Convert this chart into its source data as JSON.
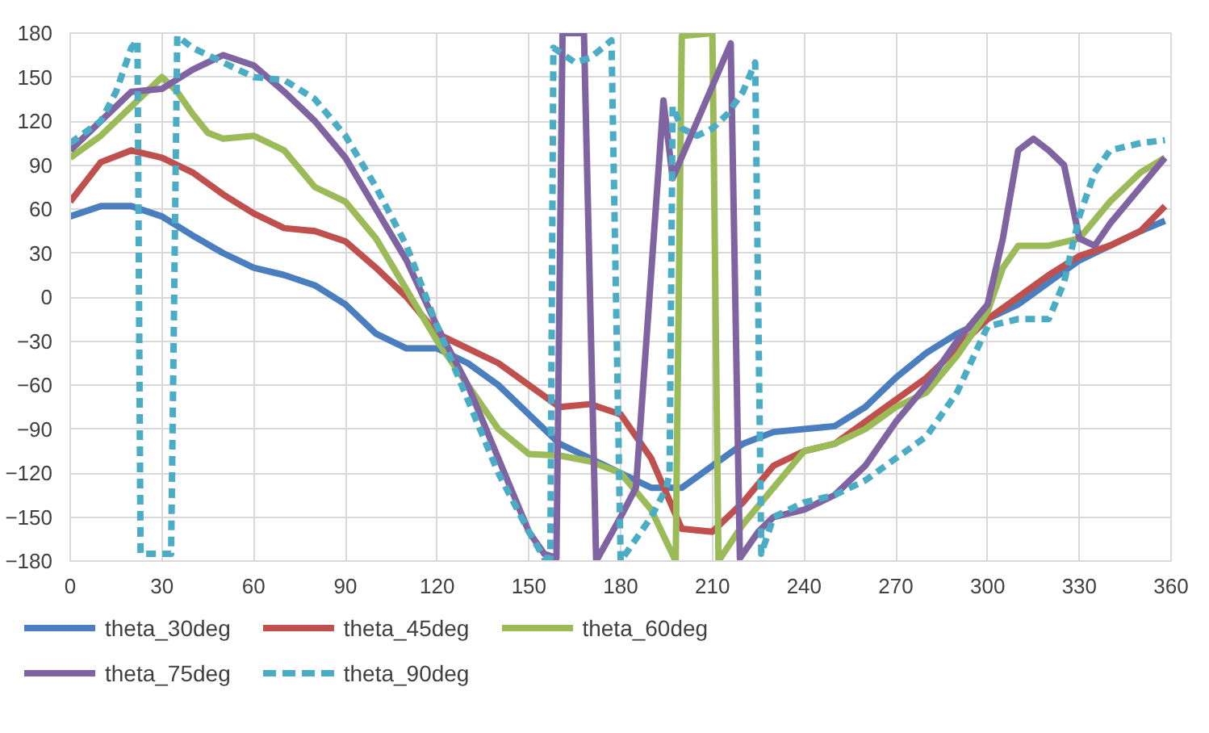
{
  "chart_data": {
    "type": "line",
    "xlim": [
      0,
      360
    ],
    "ylim": [
      -180,
      180
    ],
    "xticks": [
      0,
      30,
      60,
      90,
      120,
      150,
      180,
      210,
      240,
      270,
      300,
      330,
      360
    ],
    "yticks": [
      -180,
      -150,
      -120,
      -90,
      -60,
      -30,
      0,
      30,
      60,
      90,
      120,
      150,
      180
    ],
    "grid": true,
    "legend": "bottom",
    "line_style": "solid",
    "series": [
      {
        "name": "theta_30deg",
        "color": "#4a7ebf",
        "x": [
          0,
          10,
          20,
          30,
          40,
          50,
          60,
          70,
          80,
          90,
          100,
          110,
          120,
          130,
          140,
          150,
          160,
          170,
          180,
          190,
          200,
          210,
          220,
          230,
          240,
          250,
          260,
          270,
          280,
          290,
          300,
          310,
          320,
          330,
          340,
          350,
          358
        ],
        "values": [
          55,
          62,
          62,
          55,
          42,
          30,
          20,
          15,
          8,
          -5,
          -25,
          -35,
          -35,
          -45,
          -60,
          -80,
          -100,
          -110,
          -120,
          -130,
          -130,
          -115,
          -100,
          -92,
          -90,
          -88,
          -75,
          -55,
          -38,
          -25,
          -15,
          -5,
          10,
          25,
          35,
          45,
          52
        ]
      },
      {
        "name": "theta_45deg",
        "color": "#c0504d",
        "x": [
          0,
          10,
          20,
          30,
          40,
          50,
          60,
          70,
          80,
          90,
          100,
          110,
          120,
          130,
          140,
          150,
          160,
          170,
          180,
          190,
          200,
          210,
          220,
          230,
          240,
          250,
          260,
          270,
          280,
          290,
          300,
          310,
          320,
          330,
          340,
          350,
          358
        ],
        "values": [
          65,
          92,
          100,
          95,
          85,
          70,
          57,
          47,
          45,
          38,
          20,
          0,
          -25,
          -35,
          -45,
          -60,
          -75,
          -73,
          -80,
          -110,
          -158,
          -160,
          -140,
          -115,
          -105,
          -100,
          -85,
          -70,
          -55,
          -35,
          -15,
          0,
          15,
          28,
          35,
          45,
          62
        ]
      },
      {
        "name": "theta_60deg",
        "color": "#9bbb59",
        "x": [
          0,
          10,
          20,
          30,
          35,
          40,
          45,
          50,
          60,
          70,
          80,
          90,
          100,
          110,
          120,
          130,
          140,
          150,
          160,
          170,
          180,
          190,
          198,
          200,
          210,
          212,
          220,
          230,
          240,
          250,
          260,
          270,
          280,
          290,
          300,
          305,
          310,
          320,
          330,
          340,
          350,
          358
        ],
        "values": [
          95,
          110,
          130,
          150,
          140,
          125,
          112,
          108,
          110,
          100,
          75,
          65,
          40,
          5,
          -30,
          -60,
          -90,
          -107,
          -108,
          -112,
          -120,
          -145,
          -180,
          178,
          180,
          -180,
          -155,
          -130,
          -105,
          -100,
          -90,
          -75,
          -65,
          -40,
          -10,
          20,
          35,
          35,
          40,
          65,
          85,
          95
        ]
      },
      {
        "name": "theta_75deg",
        "color": "#8064a2",
        "x": [
          0,
          10,
          20,
          30,
          40,
          50,
          60,
          70,
          80,
          90,
          100,
          110,
          120,
          130,
          140,
          150,
          155,
          159,
          161,
          168,
          172,
          180,
          185,
          194,
          197,
          216,
          219,
          225,
          230,
          240,
          250,
          260,
          270,
          280,
          290,
          300,
          305,
          310,
          315,
          320,
          325,
          330,
          335,
          340,
          350,
          358
        ],
        "values": [
          100,
          120,
          140,
          142,
          155,
          165,
          158,
          140,
          120,
          95,
          60,
          25,
          -20,
          -60,
          -110,
          -160,
          -175,
          -178,
          180,
          180,
          -180,
          -150,
          -130,
          134,
          81,
          173,
          -178,
          -160,
          -150,
          -145,
          -135,
          -115,
          -85,
          -60,
          -30,
          -5,
          40,
          100,
          108,
          100,
          90,
          40,
          35,
          50,
          75,
          95
        ]
      },
      {
        "name": "theta_90deg",
        "color": "#4bacc6",
        "line_style": "dashed",
        "x": [
          0,
          10,
          15,
          20,
          22,
          23,
          33,
          35,
          40,
          50,
          60,
          70,
          80,
          90,
          100,
          110,
          120,
          130,
          140,
          150,
          155,
          157,
          158,
          165,
          170,
          177,
          180,
          185,
          190,
          195,
          196,
          197,
          200,
          205,
          210,
          215,
          220,
          224,
          226,
          230,
          240,
          250,
          260,
          270,
          280,
          290,
          300,
          310,
          320,
          325,
          330,
          335,
          340,
          350,
          358
        ],
        "values": [
          105,
          120,
          140,
          170,
          175,
          -175,
          -175,
          178,
          170,
          160,
          150,
          148,
          135,
          110,
          75,
          35,
          -20,
          -70,
          -120,
          -160,
          -178,
          -178,
          170,
          160,
          163,
          175,
          -180,
          -165,
          -150,
          -130,
          -120,
          130,
          115,
          110,
          115,
          125,
          140,
          160,
          -175,
          -150,
          -140,
          -135,
          -125,
          -110,
          -95,
          -65,
          -20,
          -15,
          -15,
          10,
          55,
          85,
          100,
          105,
          107
        ]
      }
    ]
  }
}
